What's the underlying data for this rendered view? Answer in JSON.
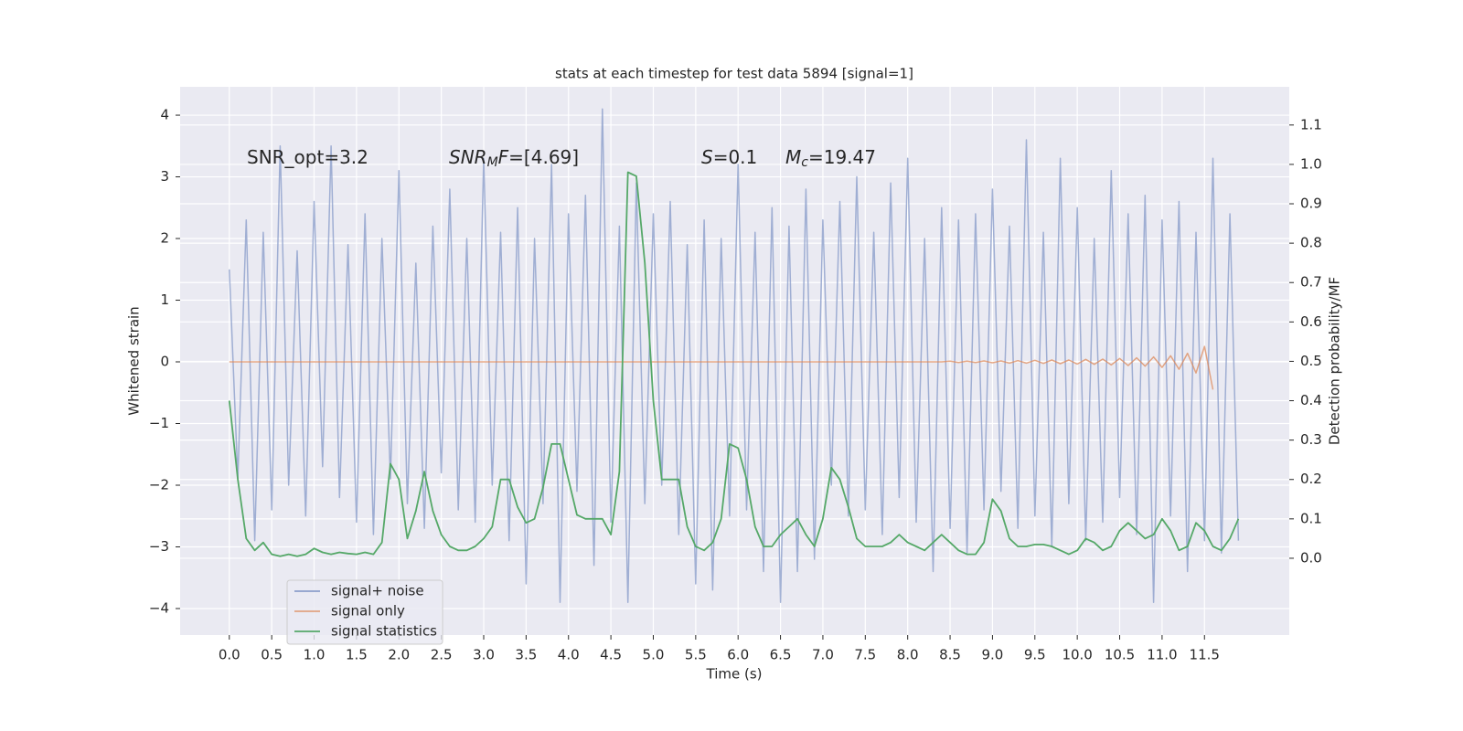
{
  "chart_data": {
    "type": "line",
    "title": "stats at each timestep for test data 5894 [signal=1]",
    "xlabel": "Time (s)",
    "ylabel": "Whitened strain",
    "y2label": "Detection probability/MF",
    "xlim": [
      -0.58,
      12.5
    ],
    "ylim": [
      -4.43,
      4.46
    ],
    "y2lim": [
      -0.195,
      1.197
    ],
    "xticks": [
      {
        "value": 0,
        "label": "0.0"
      },
      0.5,
      {
        "value": 1,
        "label": "1.0"
      },
      1.5,
      {
        "value": 2,
        "label": "2.0"
      },
      2.5,
      {
        "value": 3,
        "label": "3.0"
      },
      3.5,
      {
        "value": 4,
        "label": "4.0"
      },
      4.5,
      {
        "value": 5,
        "label": "5.0"
      },
      5.5,
      {
        "value": 6,
        "label": "6.0"
      },
      6.5,
      {
        "value": 7,
        "label": "7.0"
      },
      7.5,
      {
        "value": 8,
        "label": "8.0"
      },
      8.5,
      {
        "value": 9,
        "label": "9.0"
      },
      9.5,
      {
        "value": 10,
        "label": "10.0"
      },
      10.5,
      {
        "value": 11,
        "label": "11.0"
      },
      11.5
    ],
    "yticks": [
      {
        "value": -4,
        "label": "−4"
      },
      {
        "value": -3,
        "label": "−3"
      },
      {
        "value": -2,
        "label": "−2"
      },
      {
        "value": -1,
        "label": "−1"
      },
      0,
      1,
      2,
      3,
      4
    ],
    "y2ticks": [
      {
        "value": 0,
        "label": "0.0"
      },
      0.1,
      0.2,
      0.3,
      0.4,
      0.5,
      0.6,
      0.7,
      0.8,
      0.9,
      {
        "value": 1,
        "label": "1.0"
      },
      1.1
    ],
    "grid": true,
    "legend": "lower left",
    "annotations": [
      [
        {
          "text": "SNR_opt=3.2"
        }
      ],
      [
        {
          "text": "SNR",
          "italic": true
        },
        {
          "text": "M",
          "italic": true,
          "sub": true
        },
        {
          "text": "F",
          "italic": true
        },
        {
          "text": "=[4.69]"
        }
      ],
      [
        {
          "text": "S",
          "italic": true
        },
        {
          "text": "=0.1"
        }
      ],
      [
        {
          "text": "M",
          "italic": true
        },
        {
          "text": "c",
          "italic": true,
          "sub": true
        },
        {
          "text": "=19.47"
        }
      ]
    ],
    "x": [
      0.0,
      0.1,
      0.2,
      0.3,
      0.4,
      0.5,
      0.6,
      0.7,
      0.8,
      0.9,
      1.0,
      1.1,
      1.2,
      1.3,
      1.4,
      1.5,
      1.6,
      1.7,
      1.8,
      1.9,
      2.0,
      2.1,
      2.2,
      2.3,
      2.4,
      2.5,
      2.6,
      2.7,
      2.8,
      2.9,
      3.0,
      3.1,
      3.2,
      3.3,
      3.4,
      3.5,
      3.6,
      3.7,
      3.8,
      3.9,
      4.0,
      4.1,
      4.2,
      4.3,
      4.4,
      4.5,
      4.6,
      4.7,
      4.8,
      4.9,
      5.0,
      5.1,
      5.2,
      5.3,
      5.4,
      5.5,
      5.6,
      5.7,
      5.8,
      5.9,
      6.0,
      6.1,
      6.2,
      6.3,
      6.4,
      6.5,
      6.6,
      6.7,
      6.8,
      6.9,
      7.0,
      7.1,
      7.2,
      7.3,
      7.4,
      7.5,
      7.6,
      7.7,
      7.8,
      7.9,
      8.0,
      8.1,
      8.2,
      8.3,
      8.4,
      8.5,
      8.6,
      8.7,
      8.8,
      8.9,
      9.0,
      9.1,
      9.2,
      9.3,
      9.4,
      9.5,
      9.6,
      9.7,
      9.8,
      9.9,
      10.0,
      10.1,
      10.2,
      10.3,
      10.4,
      10.5,
      10.6,
      10.7,
      10.8,
      10.9,
      11.0,
      11.1,
      11.2,
      11.3,
      11.4,
      11.5,
      11.6,
      11.7,
      11.8,
      11.9
    ],
    "series": [
      {
        "name": "signal+ noise",
        "color": "#8c9fcb",
        "axis": "y",
        "values": [
          1.5,
          -1.9,
          2.3,
          -2.9,
          2.1,
          -2.4,
          3.5,
          -2.0,
          1.8,
          -2.5,
          2.6,
          -1.7,
          3.5,
          -2.2,
          1.9,
          -2.6,
          2.4,
          -2.8,
          2.0,
          -1.9,
          3.1,
          -2.3,
          1.6,
          -2.7,
          2.2,
          -1.8,
          2.8,
          -2.4,
          2.0,
          -2.6,
          3.3,
          -2.0,
          2.1,
          -2.9,
          2.5,
          -3.6,
          2.0,
          -2.3,
          3.2,
          -3.9,
          2.4,
          -2.1,
          2.7,
          -3.3,
          4.1,
          -2.6,
          2.2,
          -3.9,
          2.9,
          -2.3,
          2.4,
          -2.0,
          2.6,
          -2.8,
          1.9,
          -3.6,
          2.3,
          -3.7,
          2.0,
          -2.5,
          3.2,
          -2.4,
          2.1,
          -3.4,
          2.5,
          -3.9,
          2.2,
          -3.4,
          2.8,
          -3.2,
          2.3,
          -2.0,
          2.6,
          -2.5,
          3.0,
          -2.4,
          2.1,
          -2.8,
          2.9,
          -2.2,
          3.3,
          -2.6,
          2.0,
          -3.4,
          2.5,
          -2.7,
          2.3,
          -3.1,
          2.4,
          -2.4,
          2.8,
          -2.1,
          2.2,
          -2.7,
          3.6,
          -2.5,
          2.1,
          -3.0,
          3.3,
          -2.3,
          2.5,
          -2.9,
          2.0,
          -2.6,
          3.1,
          -2.2,
          2.4,
          -2.8,
          2.7,
          -3.9,
          2.3,
          -2.5,
          2.6,
          -3.4,
          2.1,
          -2.9,
          3.3,
          -3.1,
          2.4,
          -2.9
        ]
      },
      {
        "name": "signal only",
        "color": "#dd8452",
        "axis": "y",
        "values": [
          0,
          0,
          0,
          0,
          0,
          0,
          0,
          0,
          0,
          0,
          0,
          0,
          0,
          0,
          0,
          0,
          0,
          0,
          0,
          0,
          0,
          0,
          0,
          0,
          0,
          0,
          0,
          0,
          0,
          0,
          0,
          0,
          0,
          0,
          0,
          0,
          0,
          0,
          0,
          0,
          0,
          0,
          0,
          0,
          0,
          0,
          0,
          0,
          0,
          0,
          0,
          0,
          0,
          0,
          0,
          0,
          0,
          0,
          0,
          0,
          0,
          0,
          0,
          0,
          0,
          0,
          0,
          0,
          0,
          0,
          0,
          0,
          0,
          0,
          0,
          0,
          0,
          0,
          0,
          0,
          0,
          0,
          0,
          0,
          0,
          0.01,
          -0.01,
          0.01,
          -0.01,
          0.015,
          -0.015,
          0.015,
          -0.02,
          0.02,
          -0.02,
          0.025,
          -0.025,
          0.03,
          -0.03,
          0.03,
          -0.035,
          0.04,
          -0.04,
          0.045,
          -0.05,
          0.055,
          -0.06,
          0.065,
          -0.07,
          0.08,
          -0.09,
          0.1,
          -0.12,
          0.14,
          -0.18,
          0.25,
          -0.45,
          null,
          null,
          null
        ]
      },
      {
        "name": "signal statistics",
        "color": "#55a868",
        "axis": "y2",
        "values": [
          0.4,
          0.2,
          0.05,
          0.02,
          0.04,
          0.01,
          0.005,
          0.01,
          0.005,
          0.01,
          0.025,
          0.015,
          0.01,
          0.015,
          0.012,
          0.01,
          0.015,
          0.01,
          0.04,
          0.24,
          0.2,
          0.05,
          0.12,
          0.22,
          0.12,
          0.06,
          0.03,
          0.02,
          0.02,
          0.03,
          0.05,
          0.08,
          0.2,
          0.2,
          0.13,
          0.09,
          0.1,
          0.18,
          0.29,
          0.29,
          0.2,
          0.11,
          0.1,
          0.1,
          0.1,
          0.06,
          0.22,
          0.98,
          0.97,
          0.75,
          0.4,
          0.2,
          0.2,
          0.2,
          0.08,
          0.03,
          0.02,
          0.04,
          0.1,
          0.29,
          0.28,
          0.2,
          0.08,
          0.03,
          0.03,
          0.06,
          0.08,
          0.1,
          0.06,
          0.03,
          0.1,
          0.23,
          0.2,
          0.13,
          0.05,
          0.03,
          0.03,
          0.03,
          0.04,
          0.06,
          0.04,
          0.03,
          0.02,
          0.04,
          0.06,
          0.04,
          0.02,
          0.01,
          0.01,
          0.04,
          0.15,
          0.12,
          0.05,
          0.03,
          0.03,
          0.035,
          0.035,
          0.03,
          0.02,
          0.01,
          0.02,
          0.05,
          0.04,
          0.02,
          0.03,
          0.07,
          0.09,
          0.07,
          0.05,
          0.06,
          0.1,
          0.07,
          0.02,
          0.03,
          0.09,
          0.07,
          0.03,
          0.02,
          0.05,
          0.1
        ]
      }
    ]
  }
}
